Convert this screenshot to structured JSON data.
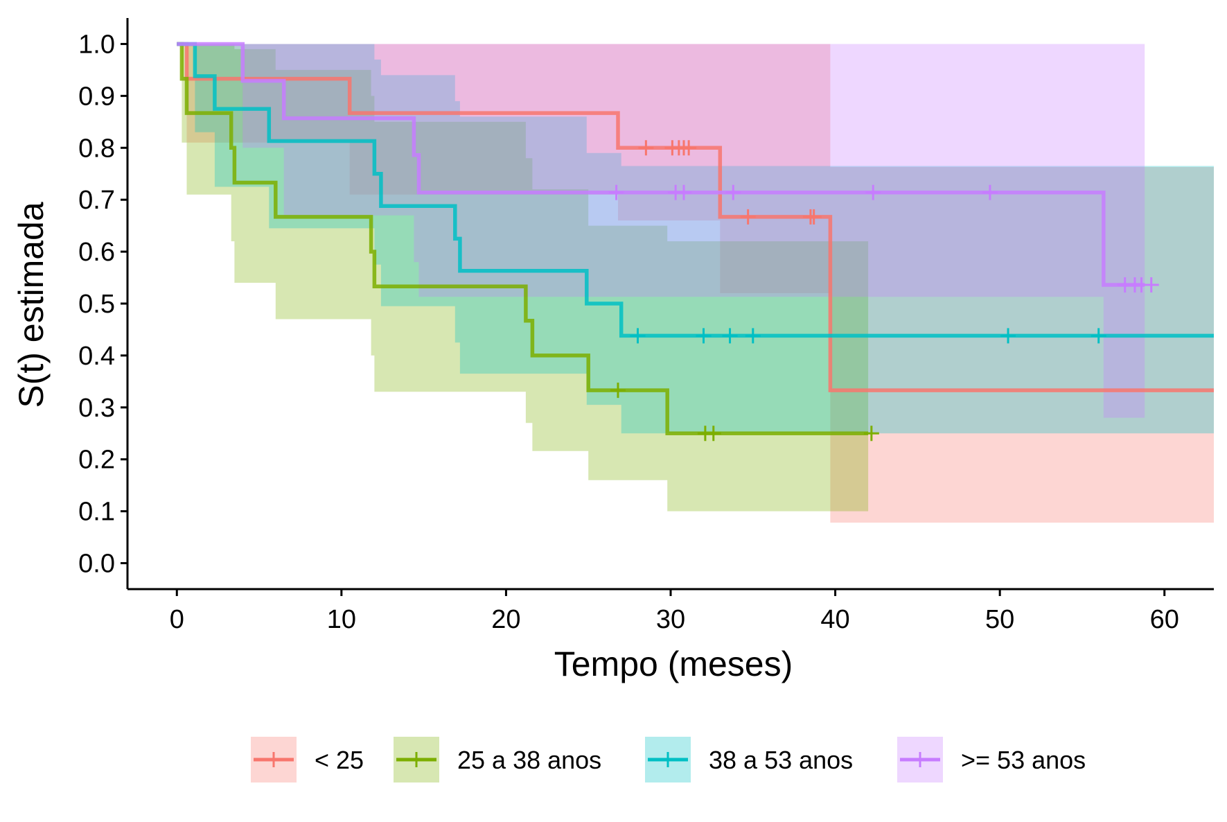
{
  "chart_data": {
    "type": "line",
    "subtype": "kaplan-meier",
    "title": "",
    "xlabel": "Tempo (meses)",
    "ylabel": "S(t) estimada",
    "xlim": [
      -3,
      63
    ],
    "ylim": [
      -0.05,
      1.05
    ],
    "x_ticks": [
      "0",
      "10",
      "20",
      "30",
      "40",
      "50",
      "60"
    ],
    "x_tick_values": [
      0,
      10,
      20,
      30,
      40,
      50,
      60
    ],
    "y_ticks": [
      "0.0",
      "0.1",
      "0.2",
      "0.3",
      "0.4",
      "0.5",
      "0.6",
      "0.7",
      "0.8",
      "0.9",
      "1.0"
    ],
    "y_tick_values": [
      0.0,
      0.1,
      0.2,
      0.3,
      0.4,
      0.5,
      0.6,
      0.7,
      0.8,
      0.9,
      1.0
    ],
    "grid": false,
    "legend_position": "bottom",
    "series": [
      {
        "name": "< 25",
        "color": "#F8766D",
        "fill": "#F8766D",
        "steps": [
          [
            0,
            1.0
          ],
          [
            0.6,
            0.933
          ],
          [
            10.5,
            0.867
          ],
          [
            26.8,
            0.8
          ],
          [
            33.0,
            0.667
          ],
          [
            39.7,
            0.333
          ],
          [
            63,
            0.333
          ]
        ],
        "censored": [
          [
            28.5,
            0.8
          ],
          [
            30.1,
            0.8
          ],
          [
            30.5,
            0.8
          ],
          [
            30.8,
            0.8
          ],
          [
            31.1,
            0.8
          ],
          [
            34.7,
            0.667
          ],
          [
            38.5,
            0.667
          ],
          [
            38.7,
            0.667
          ]
        ],
        "ci": [
          [
            0,
            1.0,
            1.0
          ],
          [
            0.6,
            1.0,
            0.81
          ],
          [
            10.5,
            1.0,
            0.71
          ],
          [
            26.8,
            1.0,
            0.66
          ],
          [
            33.0,
            1.0,
            0.52
          ],
          [
            39.7,
            0.763,
            0.078
          ],
          [
            63,
            0.763,
            0.078
          ]
        ]
      },
      {
        "name": "25 a 38 anos",
        "color": "#7CAE00",
        "fill": "#7CAE00",
        "steps": [
          [
            0,
            1.0
          ],
          [
            0.3,
            0.933
          ],
          [
            0.6,
            0.867
          ],
          [
            3.3,
            0.8
          ],
          [
            3.5,
            0.733
          ],
          [
            6.0,
            0.667
          ],
          [
            11.8,
            0.6
          ],
          [
            12.0,
            0.533
          ],
          [
            21.2,
            0.467
          ],
          [
            21.6,
            0.4
          ],
          [
            25.0,
            0.333
          ],
          [
            29.8,
            0.25
          ],
          [
            42.0,
            0.25
          ]
        ],
        "censored": [
          [
            26.8,
            0.333
          ],
          [
            32.1,
            0.25
          ],
          [
            32.6,
            0.25
          ],
          [
            42.2,
            0.25
          ]
        ],
        "ci": [
          [
            0,
            1.0,
            1.0
          ],
          [
            0.3,
            1.0,
            0.81
          ],
          [
            0.6,
            1.0,
            0.71
          ],
          [
            3.3,
            1.0,
            0.62
          ],
          [
            3.5,
            0.99,
            0.54
          ],
          [
            6.0,
            0.95,
            0.47
          ],
          [
            11.8,
            0.9,
            0.4
          ],
          [
            12.0,
            0.85,
            0.33
          ],
          [
            21.2,
            0.78,
            0.27
          ],
          [
            21.6,
            0.72,
            0.216
          ],
          [
            25.0,
            0.65,
            0.16
          ],
          [
            29.8,
            0.62,
            0.1
          ],
          [
            42.0,
            0.62,
            0.1
          ]
        ]
      },
      {
        "name": "38 a 53 anos",
        "color": "#00BFC4",
        "fill": "#00BFC4",
        "steps": [
          [
            0,
            1.0
          ],
          [
            1.1,
            0.938
          ],
          [
            2.3,
            0.875
          ],
          [
            5.6,
            0.813
          ],
          [
            12.0,
            0.75
          ],
          [
            12.4,
            0.688
          ],
          [
            16.9,
            0.625
          ],
          [
            17.2,
            0.563
          ],
          [
            24.9,
            0.5
          ],
          [
            27.0,
            0.438
          ],
          [
            63,
            0.438
          ]
        ],
        "censored": [
          [
            28.0,
            0.438
          ],
          [
            32.0,
            0.438
          ],
          [
            33.6,
            0.438
          ],
          [
            35.0,
            0.438
          ],
          [
            50.5,
            0.438
          ],
          [
            56.0,
            0.438
          ]
        ],
        "ci": [
          [
            0,
            1.0,
            1.0
          ],
          [
            1.1,
            1.0,
            0.83
          ],
          [
            2.3,
            1.0,
            0.725
          ],
          [
            5.6,
            1.0,
            0.645
          ],
          [
            12.0,
            0.97,
            0.575
          ],
          [
            12.4,
            0.94,
            0.495
          ],
          [
            16.9,
            0.89,
            0.425
          ],
          [
            17.2,
            0.86,
            0.365
          ],
          [
            24.9,
            0.79,
            0.305
          ],
          [
            27.0,
            0.765,
            0.25
          ],
          [
            63,
            0.765,
            0.25
          ]
        ]
      },
      {
        "name": ">= 53 anos",
        "color": "#C77CFF",
        "fill": "#C77CFF",
        "steps": [
          [
            0,
            1.0
          ],
          [
            4.0,
            0.929
          ],
          [
            6.5,
            0.857
          ],
          [
            14.4,
            0.786
          ],
          [
            14.7,
            0.714
          ],
          [
            56.3,
            0.536
          ],
          [
            58.8,
            0.536
          ]
        ],
        "censored": [
          [
            26.7,
            0.714
          ],
          [
            30.3,
            0.714
          ],
          [
            30.8,
            0.714
          ],
          [
            33.8,
            0.714
          ],
          [
            42.3,
            0.714
          ],
          [
            49.4,
            0.714
          ],
          [
            57.6,
            0.536
          ],
          [
            58.2,
            0.536
          ],
          [
            58.6,
            0.536
          ],
          [
            59.2,
            0.536
          ]
        ],
        "ci": [
          [
            0,
            1.0,
            1.0
          ],
          [
            4.0,
            1.0,
            0.8
          ],
          [
            6.5,
            1.0,
            0.67
          ],
          [
            14.4,
            1.0,
            0.58
          ],
          [
            14.7,
            1.0,
            0.513
          ],
          [
            56.3,
            1.0,
            0.28
          ],
          [
            58.8,
            1.0,
            0.28
          ]
        ]
      }
    ]
  }
}
